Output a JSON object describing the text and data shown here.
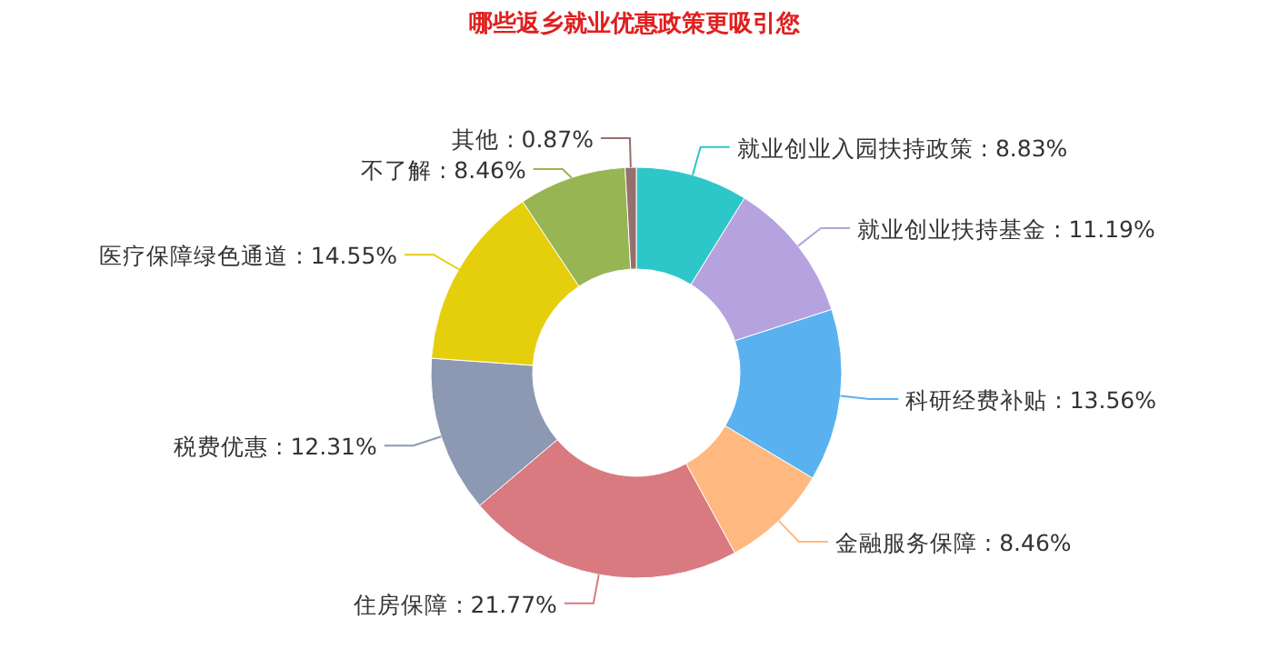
{
  "chart_data": {
    "type": "donut",
    "title": "哪些返乡就业优惠政策更吸引您",
    "categories": [
      "就业创业入园扶持政策",
      "就业创业扶持基金",
      "科研经费补贴",
      "金融服务保障",
      "住房保障",
      "税费优惠",
      "医疗保障绿色通道",
      "不了解",
      "其他"
    ],
    "values": [
      8.83,
      11.19,
      13.56,
      8.46,
      21.77,
      12.31,
      14.55,
      8.46,
      0.87
    ],
    "colors": [
      "#2ec7c9",
      "#b6a2de",
      "#5ab1ef",
      "#ffb980",
      "#d87a80",
      "#8d98b3",
      "#e5cf0d",
      "#97b552",
      "#95706d"
    ],
    "value_labels": [
      ": 8.83%",
      ": 11.19%",
      ": 13.56%",
      ": 8.46%",
      ": 21.77%",
      ": 12.31%",
      ": 14.55%",
      ": 8.46%",
      ": 0.87%"
    ]
  }
}
